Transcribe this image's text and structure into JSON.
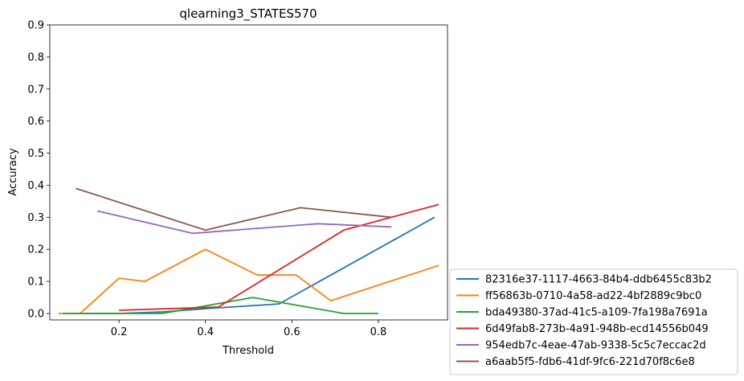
{
  "chart_data": {
    "type": "line",
    "title": "qlearning3_STATES570",
    "xlabel": "Threshold",
    "ylabel": "Accuracy",
    "xlim": [
      0.04,
      0.96
    ],
    "ylim": [
      -0.02,
      0.9
    ],
    "xticks": [
      0.2,
      0.4,
      0.6,
      0.8
    ],
    "xtick_labels": [
      "0.2",
      "0.4",
      "0.6",
      "0.8"
    ],
    "yticks": [
      0.0,
      0.1,
      0.2,
      0.3,
      0.4,
      0.5,
      0.6,
      0.7,
      0.8,
      0.9
    ],
    "ytick_labels": [
      "0.0",
      "0.1",
      "0.2",
      "0.3",
      "0.4",
      "0.5",
      "0.6",
      "0.7",
      "0.8",
      "0.9"
    ],
    "grid": false,
    "legend_position": "outside-lower-right",
    "series": [
      {
        "name": "82316e37-1117-4663-84b4-ddb6455c83b2",
        "color": "#1f77b4",
        "x": [
          0.1,
          0.2,
          0.3,
          0.4,
          0.57,
          0.93
        ],
        "y": [
          0.0,
          0.0,
          0.005,
          0.015,
          0.03,
          0.3
        ]
      },
      {
        "name": "ff56863b-0710-4a58-ad22-4bf2889c9bc0",
        "color": "#ff7f0e",
        "x": [
          0.06,
          0.11,
          0.2,
          0.26,
          0.4,
          0.52,
          0.61,
          0.69,
          0.94
        ],
        "y": [
          0.0,
          0.0,
          0.11,
          0.1,
          0.2,
          0.12,
          0.12,
          0.04,
          0.15
        ]
      },
      {
        "name": "bda49380-37ad-41c5-a109-7fa198a7691a",
        "color": "#2ca02c",
        "x": [
          0.07,
          0.19,
          0.3,
          0.51,
          0.72,
          0.8
        ],
        "y": [
          0.0,
          0.0,
          0.0,
          0.05,
          0.0,
          0.0
        ]
      },
      {
        "name": "6d49fab8-273b-4a91-948b-ecd14556b049",
        "color": "#d62728",
        "x": [
          0.2,
          0.43,
          0.72,
          0.94
        ],
        "y": [
          0.01,
          0.02,
          0.26,
          0.34
        ]
      },
      {
        "name": "954edb7c-4eae-47ab-9338-5c5c7eccac2d",
        "color": "#9467bd",
        "x": [
          0.15,
          0.37,
          0.66,
          0.83
        ],
        "y": [
          0.32,
          0.25,
          0.28,
          0.27
        ]
      },
      {
        "name": "a6aab5f5-fdb6-41df-9fc6-221d70f8c6e8",
        "color": "#8c564b",
        "x": [
          0.1,
          0.4,
          0.62,
          0.83
        ],
        "y": [
          0.39,
          0.26,
          0.33,
          0.3
        ]
      }
    ]
  }
}
